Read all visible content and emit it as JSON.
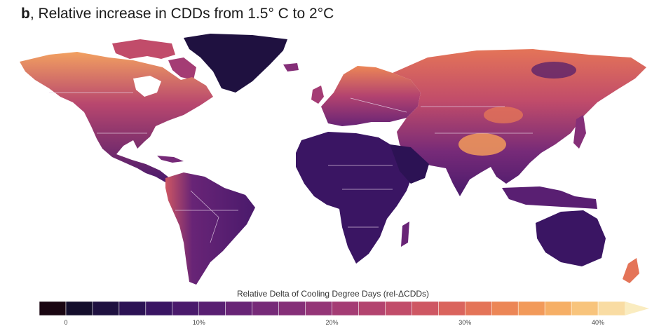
{
  "title": {
    "letter": "b",
    "text": ", Relative increase in CDDs from 1.5° C to 2°C"
  },
  "legend": {
    "title": "Relative Delta of Cooling Degree Days (rel-ΔCDDs)",
    "ticks": [
      "0",
      "10%",
      "20%",
      "30%",
      "40%"
    ],
    "bins": 22,
    "colors": [
      "#1a0612",
      "#140e2c",
      "#1f1140",
      "#2c1254",
      "#3a1563",
      "#4a1a6c",
      "#591f72",
      "#682476",
      "#762a78",
      "#852f78",
      "#943577",
      "#a43c74",
      "#b3436f",
      "#c14c6a",
      "#ce5763",
      "#da645d",
      "#e47458",
      "#ec8656",
      "#f29a5a",
      "#f6af66",
      "#f8c47c",
      "#f9dca3"
    ]
  }
}
